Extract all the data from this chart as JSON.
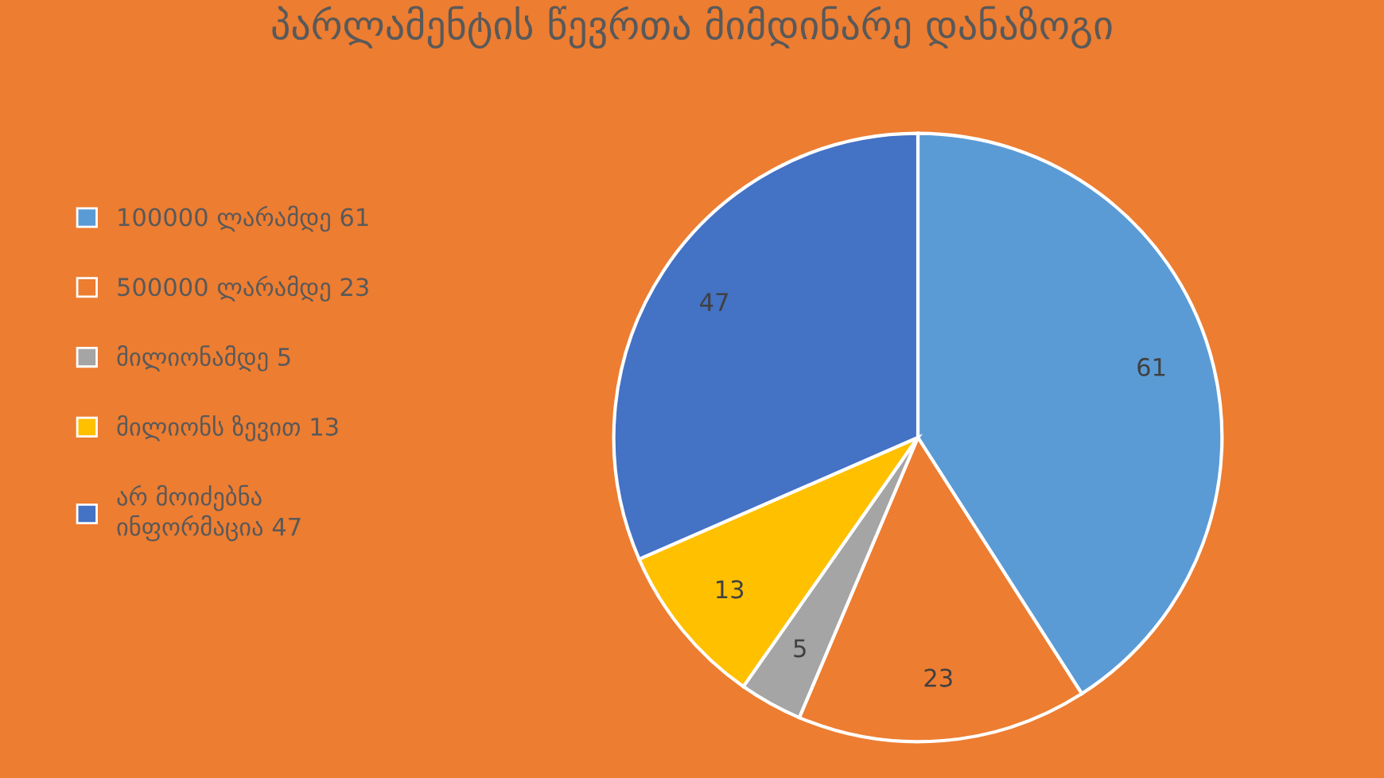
{
  "chart_data": {
    "type": "pie",
    "title": "პარლამენტის წევრთა მიმდინარე დანაზოგი",
    "categories": [
      "100000 ლარამდე 61",
      "500000 ლარამდე 23",
      "მილიონამდე 5",
      "მილიონს ზევით 13",
      "არ მოიძებნა\nინფორმაცია 47"
    ],
    "values": [
      61,
      23,
      5,
      13,
      47
    ],
    "colors": [
      "#5b9bd5",
      "#ed7d31",
      "#a5a5a5",
      "#ffc000",
      "#4472c4"
    ],
    "data_labels": true,
    "legend": "left"
  }
}
